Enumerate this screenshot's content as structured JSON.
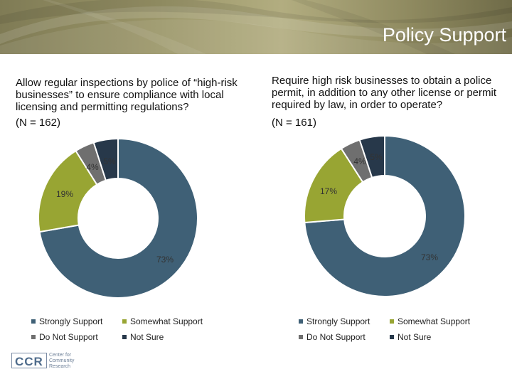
{
  "header": {
    "title": "Policy Support"
  },
  "legend": [
    {
      "label": "Strongly Support",
      "color": "#3f6076"
    },
    {
      "label": "Somewhat Support",
      "color": "#98a533"
    },
    {
      "label": "Do Not Support",
      "color": "#6f6f6f"
    },
    {
      "label": "Not Sure",
      "color": "#27384a"
    }
  ],
  "logo": {
    "abbr": "CCR",
    "line1": "Center for",
    "line2": "Community",
    "line3": "Research"
  },
  "chart_data": [
    {
      "type": "pie",
      "question": "Allow regular inspections by police of “high-risk businesses” to ensure compliance with local licensing and permitting regulations?",
      "n_label": "(N = 162)",
      "categories": [
        "Strongly Support",
        "Somewhat Support",
        "Do Not Support",
        "Not Sure"
      ],
      "values": [
        73,
        19,
        4,
        5
      ],
      "labels": [
        "73%",
        "19%",
        "4%",
        "5%"
      ],
      "colors": [
        "#3f6076",
        "#98a533",
        "#6f6f6f",
        "#27384a"
      ]
    },
    {
      "type": "pie",
      "question": "Require high risk businesses to obtain a police permit, in addition to any other license or permit required by law, in order to operate?",
      "n_label": "(N = 161)",
      "categories": [
        "Strongly Support",
        "Somewhat Support",
        "Do Not Support",
        "Not Sure"
      ],
      "values": [
        73,
        17,
        4,
        5
      ],
      "labels": [
        "73%",
        "17%",
        "4%",
        "5%"
      ],
      "colors": [
        "#3f6076",
        "#98a533",
        "#6f6f6f",
        "#27384a"
      ]
    }
  ]
}
